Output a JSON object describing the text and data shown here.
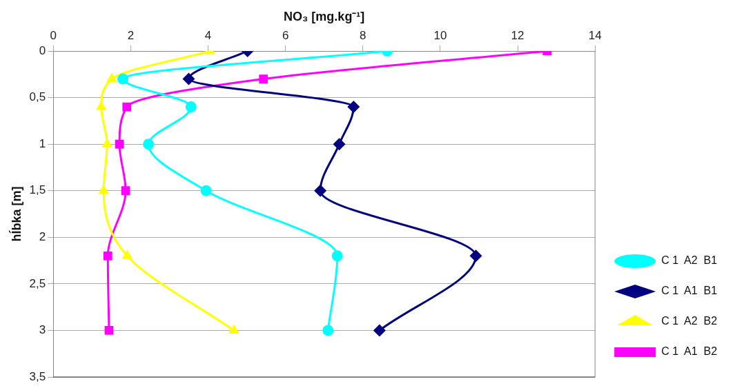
{
  "chart_data": {
    "type": "line",
    "xlabel": "NO₃ [mg.kg⁻¹]",
    "ylabel": "hĺbka [m]",
    "xlim": [
      0,
      14
    ],
    "xticks": [
      0,
      2,
      4,
      6,
      8,
      10,
      12,
      14
    ],
    "ylim": [
      3.5,
      0
    ],
    "yticks": [
      0,
      {
        "value": 0.5,
        "label": "0,5"
      },
      1,
      {
        "value": 1.5,
        "label": "1,5"
      },
      2,
      {
        "value": 2.5,
        "label": "2,5"
      },
      3,
      {
        "value": 3.5,
        "label": "3,5"
      }
    ],
    "grid": "y",
    "legend": "bottom right",
    "line_style": "solid",
    "series": [
      {
        "name": "C 1  A2  B1",
        "color": "#00ffff",
        "marker": "circle",
        "x": [
          8.63,
          1.8,
          3.56,
          2.46,
          3.95,
          7.34,
          7.1
        ],
        "values": [
          0,
          0.3,
          0.6,
          1,
          1.5,
          2.2,
          3
        ]
      },
      {
        "name": "C 1  A1  B1",
        "color": "#000080",
        "marker": "diamond",
        "x": [
          5.02,
          3.5,
          7.76,
          7.39,
          6.9,
          10.92,
          8.43
        ],
        "values": [
          0,
          0.3,
          0.6,
          1,
          1.5,
          2.2,
          3
        ]
      },
      {
        "name": "C 1  A2  B2",
        "color": "#ffff00",
        "marker": "triangle",
        "x": [
          4.05,
          1.51,
          1.24,
          1.39,
          1.3,
          1.91,
          4.67
        ],
        "values": [
          0,
          0.3,
          0.6,
          1,
          1.5,
          2.2,
          3
        ]
      },
      {
        "name": "C 1  A1  B2",
        "color": "#ff00ff",
        "marker": "square",
        "x": [
          12.76,
          5.43,
          1.9,
          1.71,
          1.87,
          1.41,
          1.44
        ],
        "values": [
          0,
          0.3,
          0.6,
          1,
          1.5,
          2.2,
          3
        ]
      }
    ]
  }
}
